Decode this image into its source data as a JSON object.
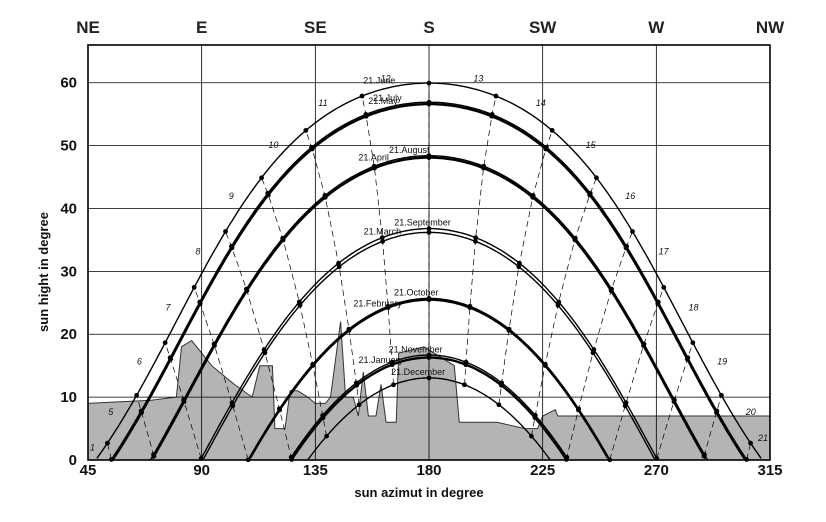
{
  "chart_data": {
    "type": "line",
    "xlabel": "sun azimut in degree",
    "ylabel": "sun hight in degree",
    "xlim": [
      45,
      315
    ],
    "ylim": [
      0,
      66
    ],
    "xticks": [
      45,
      90,
      135,
      180,
      225,
      270,
      315
    ],
    "yticks": [
      0,
      10,
      20,
      30,
      40,
      50,
      60
    ],
    "directions": [
      {
        "label": "NE",
        "az": 45
      },
      {
        "label": "E",
        "az": 90
      },
      {
        "label": "SE",
        "az": 135
      },
      {
        "label": "S",
        "az": 180
      },
      {
        "label": "SW",
        "az": 225
      },
      {
        "label": "W",
        "az": 270
      },
      {
        "label": "NW",
        "az": 315
      }
    ],
    "grid": true,
    "latitude": 53.5,
    "series": [
      {
        "name": "21.June",
        "declination": 23.44
      },
      {
        "name": "21.July",
        "declination": 20.4
      },
      {
        "name": "21.May",
        "declination": 20.1
      },
      {
        "name": "21.August",
        "declination": 11.9
      },
      {
        "name": "21.April",
        "declination": 11.6
      },
      {
        "name": "21.September",
        "declination": 0.3
      },
      {
        "name": "21.March",
        "declination": -0.3
      },
      {
        "name": "21.October",
        "declination": -10.8
      },
      {
        "name": "21.February",
        "declination": -11.0
      },
      {
        "name": "21.November",
        "declination": -19.8
      },
      {
        "name": "21.January",
        "declination": -20.2
      },
      {
        "name": "21.December",
        "declination": -23.44
      }
    ],
    "hour_labels": [
      "1",
      "5",
      "6",
      "7",
      "8",
      "9",
      "10",
      "11",
      "12",
      "13",
      "14",
      "15",
      "16",
      "17",
      "18",
      "19",
      "20",
      "21"
    ],
    "horizon_obstruction": [
      [
        45,
        9
      ],
      [
        70,
        9.5
      ],
      [
        80,
        10
      ],
      [
        82,
        18
      ],
      [
        86,
        19
      ],
      [
        90,
        17
      ],
      [
        94,
        15
      ],
      [
        97,
        14
      ],
      [
        103,
        12
      ],
      [
        110,
        10
      ],
      [
        113,
        15
      ],
      [
        118,
        15
      ],
      [
        119,
        5
      ],
      [
        123,
        5
      ],
      [
        125,
        11
      ],
      [
        128,
        11
      ],
      [
        132,
        10
      ],
      [
        135,
        9
      ],
      [
        139,
        9
      ],
      [
        141,
        10
      ],
      [
        145,
        22
      ],
      [
        147,
        10
      ],
      [
        150,
        10
      ],
      [
        152,
        7
      ],
      [
        154,
        14
      ],
      [
        156,
        7
      ],
      [
        159,
        7
      ],
      [
        161,
        12
      ],
      [
        163,
        6
      ],
      [
        167,
        6
      ],
      [
        168,
        17
      ],
      [
        178,
        18
      ],
      [
        190,
        15
      ],
      [
        192,
        6
      ],
      [
        207,
        6
      ],
      [
        218,
        5
      ],
      [
        223,
        5
      ],
      [
        225,
        7
      ],
      [
        230,
        8
      ],
      [
        231,
        7
      ],
      [
        315,
        7
      ],
      [
        315,
        0
      ],
      [
        45,
        0
      ]
    ]
  }
}
